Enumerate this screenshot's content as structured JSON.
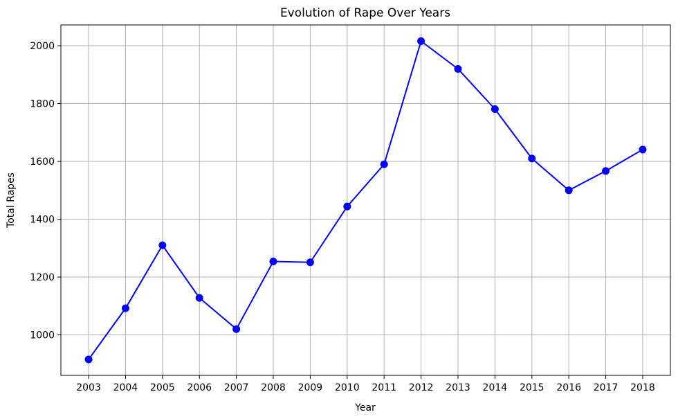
{
  "chart_data": {
    "type": "line",
    "title": "Evolution of Rape Over Years",
    "xlabel": "Year",
    "ylabel": "Total Rapes",
    "x": [
      2003,
      2004,
      2005,
      2006,
      2007,
      2008,
      2009,
      2010,
      2011,
      2012,
      2013,
      2014,
      2015,
      2016,
      2017,
      2018
    ],
    "series": [
      {
        "values": [
          915,
          1092,
          1310,
          1128,
          1020,
          1254,
          1251,
          1444,
          1590,
          2016,
          1920,
          1781,
          1610,
          1500,
          1567,
          1641
        ],
        "color": "#0000ff",
        "marker": "circle"
      }
    ],
    "xticks": [
      "2003",
      "2004",
      "2005",
      "2006",
      "2007",
      "2008",
      "2009",
      "2010",
      "2011",
      "2012",
      "2013",
      "2014",
      "2015",
      "2016",
      "2017",
      "2018"
    ],
    "yticks": [
      1000,
      1200,
      1400,
      1600,
      1800,
      2000
    ],
    "xlim": [
      2002.25,
      2018.75
    ],
    "ylim": [
      860,
      2072
    ],
    "grid": true
  }
}
